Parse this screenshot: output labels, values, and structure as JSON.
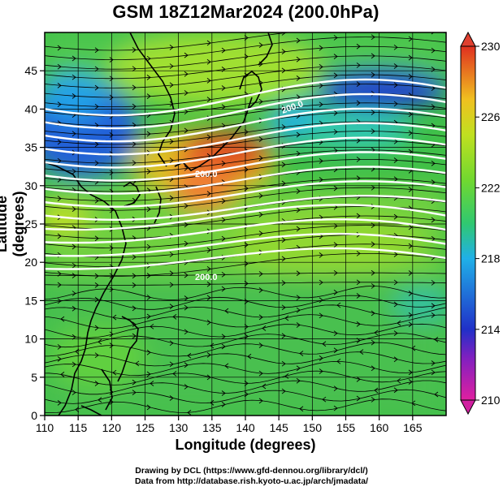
{
  "title": "GSM 18Z12Mar2024 (200.0hPa)",
  "x_axis": {
    "label": "Longitude (degrees)",
    "range": [
      110,
      170
    ],
    "ticks": [
      "110",
      "115",
      "120",
      "125",
      "130",
      "135",
      "140",
      "145",
      "150",
      "155",
      "160",
      "165"
    ]
  },
  "y_axis": {
    "label": "Latitude  (degrees)",
    "range": [
      0,
      50
    ],
    "ticks": [
      "0",
      "5",
      "10",
      "15",
      "20",
      "25",
      "30",
      "35",
      "40",
      "45"
    ]
  },
  "colorbar": {
    "range": [
      210,
      230
    ],
    "ticks": [
      "210",
      "214",
      "218",
      "222",
      "226",
      "230"
    ],
    "colors": [
      "#e020a0",
      "#2020c0",
      "#20a8e8",
      "#30c060",
      "#a8e020",
      "#f0c020",
      "#e04020"
    ]
  },
  "contour_labels": [
    "200.0",
    "200.0",
    "200.0"
  ],
  "credits": {
    "line1": "Drawing by DCL (https://www.gfd-dennou.org/library/dcl/)",
    "line2": "Data from http://database.rish.kyoto-u.ac.jp/arch/jmadata/"
  }
}
